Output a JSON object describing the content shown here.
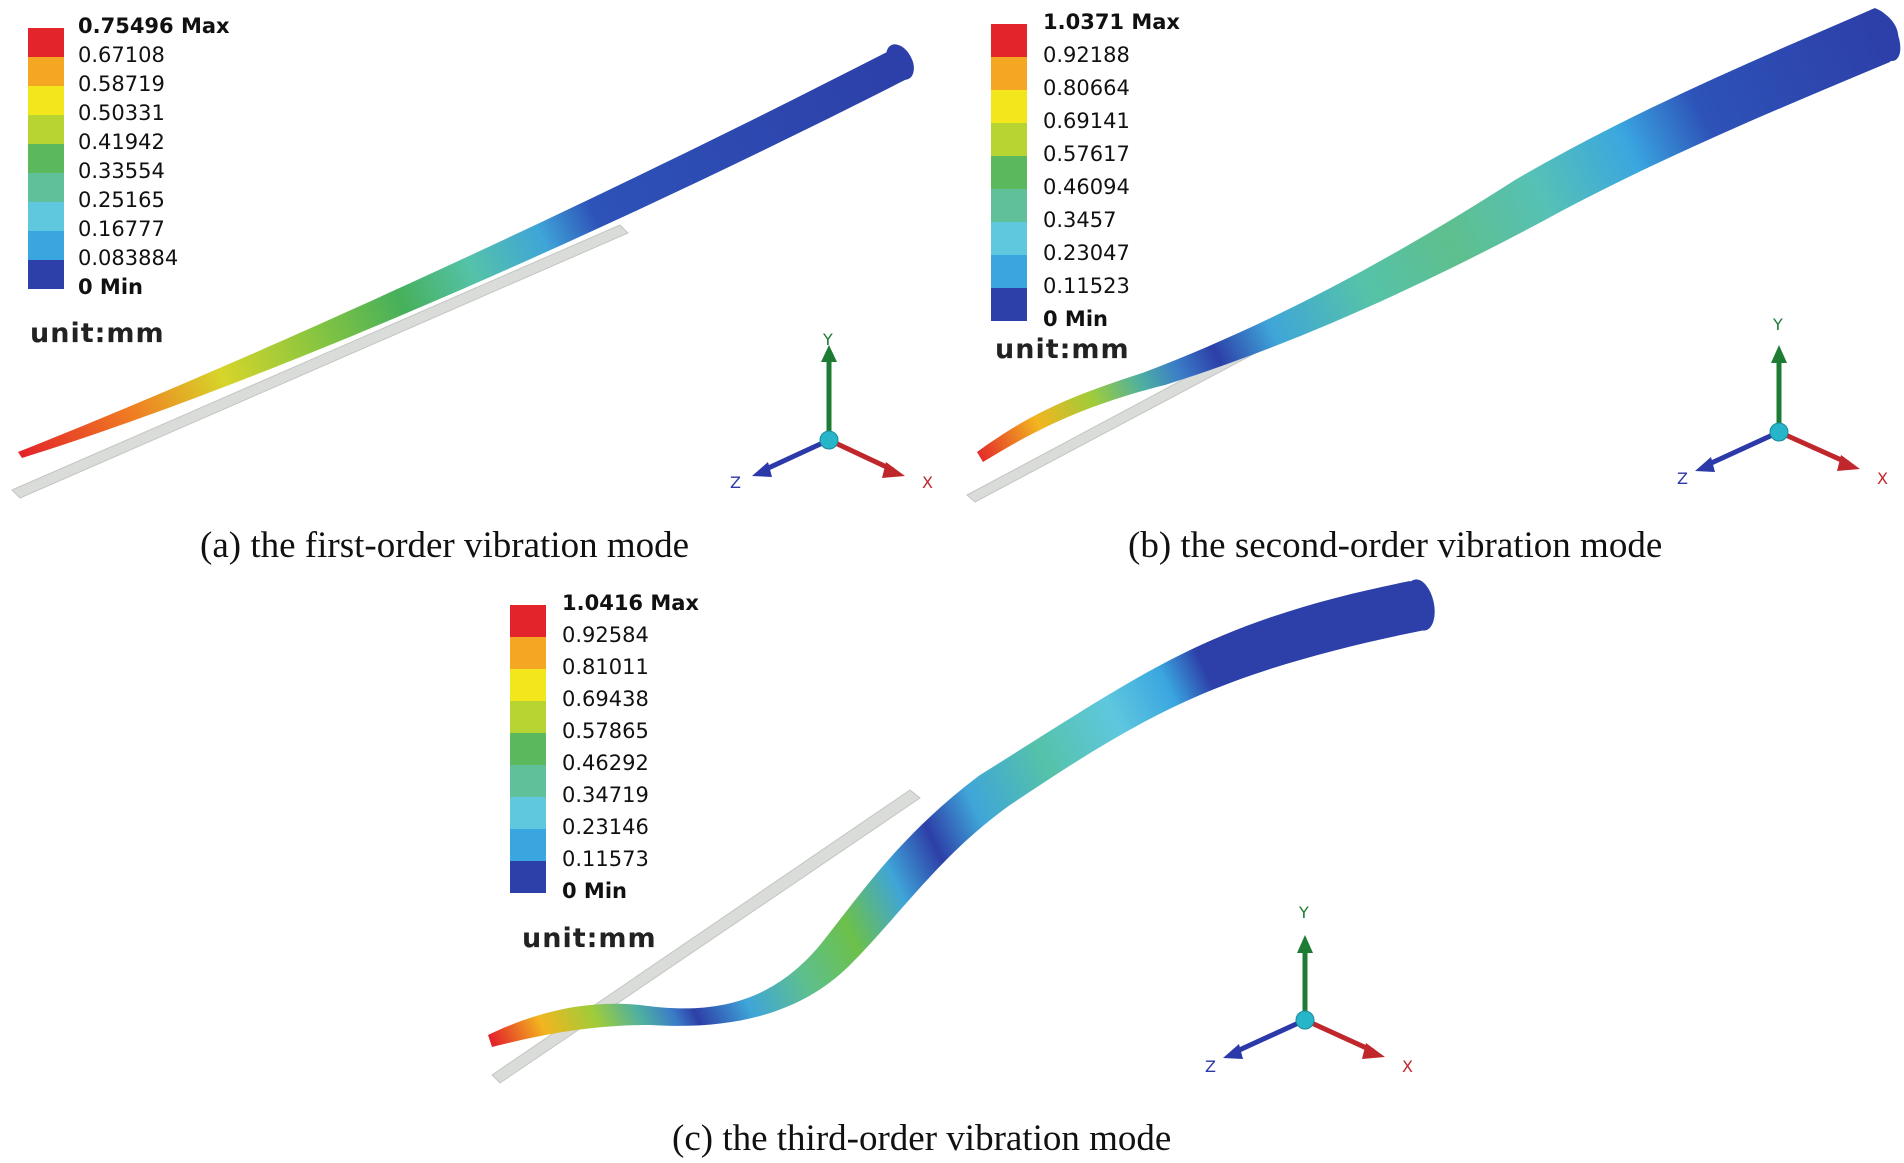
{
  "panels": [
    {
      "legend": [
        "0.75496 Max",
        "0.67108",
        "0.58719",
        "0.50331",
        "0.41942",
        "0.33554",
        "0.25165",
        "0.16777",
        "0.083884",
        "0 Min"
      ],
      "unit": "unit:mm",
      "caption": "(a) the first-order vibration mode"
    },
    {
      "legend": [
        "1.0371 Max",
        "0.92188",
        "0.80664",
        "0.69141",
        "0.57617",
        "0.46094",
        "0.3457",
        "0.23047",
        "0.11523",
        "0 Min"
      ],
      "unit": "unit:mm",
      "caption": "(b) the second-order vibration mode"
    },
    {
      "legend": [
        "1.0416 Max",
        "0.92584",
        "0.81011",
        "0.69438",
        "0.57865",
        "0.46292",
        "0.34719",
        "0.23146",
        "0.11573",
        "0 Min"
      ],
      "unit": "unit:mm",
      "caption": "(c) the third-order vibration mode"
    }
  ],
  "axes": {
    "x": "X",
    "y": "Y",
    "z": "Z"
  },
  "legend_colors": [
    "#e3242b",
    "#f5a623",
    "#f2e61c",
    "#b8d433",
    "#5cb85c",
    "#5fc09a",
    "#5fc7de",
    "#3aa6e0",
    "#2b63c4",
    "#2d3fa8"
  ],
  "axis_colors": {
    "x": "#c0272d",
    "y": "#1e7b33",
    "z": "#2b3aa8",
    "origin": "#27b5c9"
  }
}
